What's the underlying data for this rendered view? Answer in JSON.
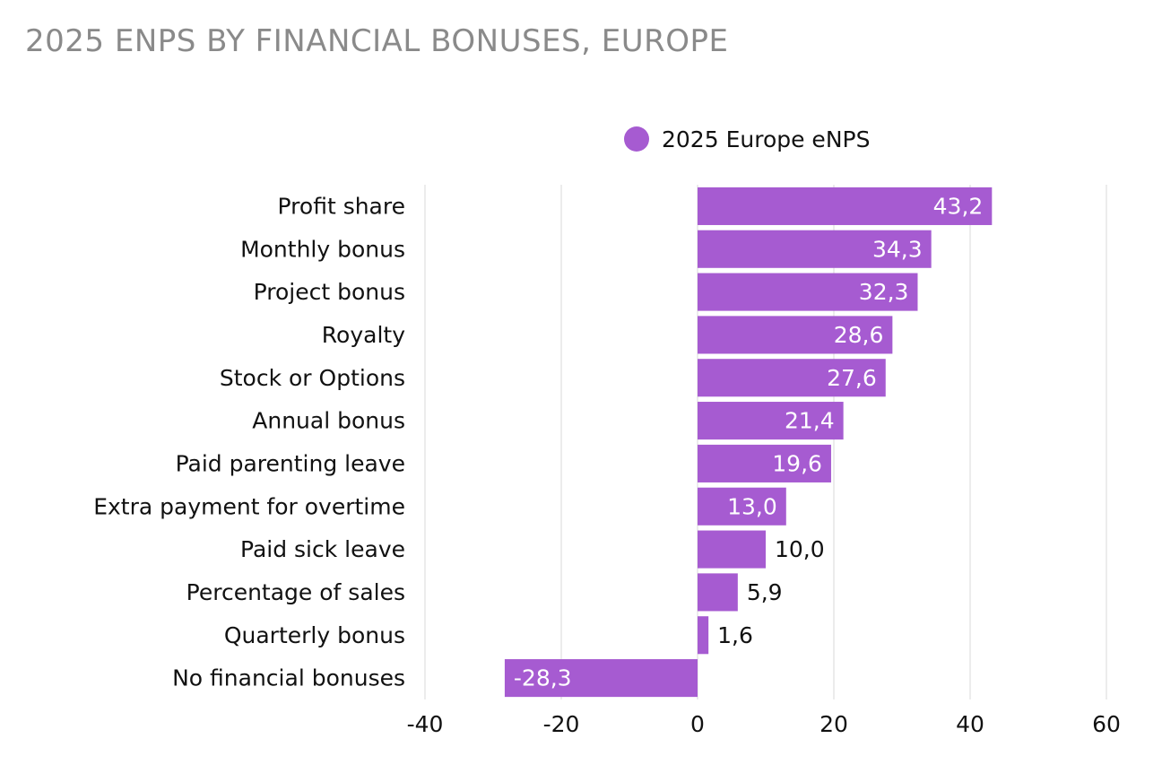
{
  "chart_data": {
    "type": "bar",
    "orientation": "horizontal",
    "title": "2025 ENPS BY FINANCIAL BONUSES, EUROPE",
    "categories": [
      "Profit share",
      "Monthly bonus",
      "Project bonus",
      "Royalty",
      "Stock or Options",
      "Annual bonus",
      "Paid parenting leave",
      "Extra payment for overtime",
      "Paid sick leave",
      "Percentage of sales",
      "Quarterly bonus",
      "No financial bonuses"
    ],
    "series": [
      {
        "name": "2025 Europe eNPS",
        "values": [
          43.2,
          34.3,
          32.3,
          28.6,
          27.6,
          21.4,
          19.6,
          13.0,
          10.0,
          5.9,
          1.6,
          -28.3
        ],
        "labels": [
          "43,2",
          "34,3",
          "32,3",
          "28,6",
          "27,6",
          "21,4",
          "19,6",
          "13,0",
          "10,0",
          "5,9",
          "1,6",
          "-28,3"
        ],
        "color": "#a65bd1"
      }
    ],
    "xlim": [
      -40,
      60
    ],
    "xticks": [
      -40,
      -20,
      0,
      20,
      40,
      60
    ],
    "xtick_labels": [
      "-40",
      "-20",
      "0",
      "20",
      "40",
      "60"
    ],
    "xlabel": "",
    "ylabel": "",
    "grid": true,
    "legend_position": "top"
  },
  "colors": {
    "bar": "#a65bd1",
    "grid": "#d9d9d9",
    "label_inside": "#ffffff",
    "label_outside": "#111111"
  }
}
